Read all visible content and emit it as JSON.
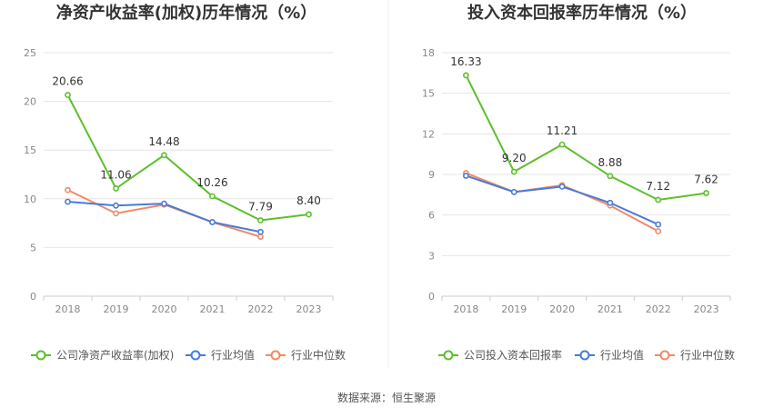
{
  "source": "数据来源：恒生聚源",
  "colors": {
    "company": "#5cbf2a",
    "avg": "#4a7bd6",
    "median": "#f08a65",
    "grid": "#e6e6e6",
    "axis": "#cccccc"
  },
  "chart_data": [
    {
      "type": "line",
      "title": "净资产收益率(加权)历年情况（%）",
      "categories": [
        "2018",
        "2019",
        "2020",
        "2021",
        "2022",
        "2023"
      ],
      "ylim": [
        0,
        25
      ],
      "yticks": [
        "0",
        "5",
        "10",
        "15",
        "20",
        "25"
      ],
      "grid": true,
      "legend_position": "bottom",
      "series": [
        {
          "name": "公司净资产收益率(加权)",
          "color_key": "company",
          "values": [
            20.66,
            11.06,
            14.48,
            10.26,
            7.79,
            8.4
          ],
          "labels": [
            "20.66",
            "11.06",
            "14.48",
            "10.26",
            "7.79",
            "8.40"
          ]
        },
        {
          "name": "行业均值",
          "color_key": "avg",
          "values": [
            9.7,
            9.3,
            9.5,
            7.6,
            6.6,
            null
          ]
        },
        {
          "name": "行业中位数",
          "color_key": "median",
          "values": [
            10.9,
            8.5,
            9.4,
            7.6,
            6.1,
            null
          ]
        }
      ]
    },
    {
      "type": "line",
      "title": "投入资本回报率历年情况（%）",
      "categories": [
        "2018",
        "2019",
        "2020",
        "2021",
        "2022",
        "2023"
      ],
      "ylim": [
        0,
        18
      ],
      "yticks": [
        "0",
        "3",
        "6",
        "9",
        "12",
        "15",
        "18"
      ],
      "grid": true,
      "legend_position": "bottom",
      "series": [
        {
          "name": "公司投入资本回报率",
          "color_key": "company",
          "values": [
            16.33,
            9.2,
            11.21,
            8.88,
            7.12,
            7.62
          ],
          "labels": [
            "16.33",
            "9.20",
            "11.21",
            "8.88",
            "7.12",
            "7.62"
          ]
        },
        {
          "name": "行业均值",
          "color_key": "avg",
          "values": [
            8.9,
            7.7,
            8.1,
            6.9,
            5.3,
            null
          ]
        },
        {
          "name": "行业中位数",
          "color_key": "median",
          "values": [
            9.1,
            7.7,
            8.2,
            6.7,
            4.8,
            null
          ]
        }
      ]
    }
  ]
}
